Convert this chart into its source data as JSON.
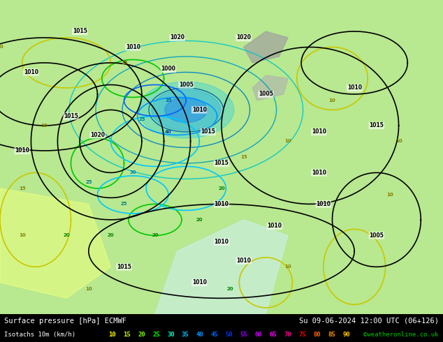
{
  "title_left": "Surface pressure [hPa] ECMWF",
  "title_right": "Su 09-06-2024 12:00 UTC (06+126)",
  "legend_left": "Isotachs 10m (km/h)",
  "legend_values": [
    "10",
    "15",
    "20",
    "25",
    "30",
    "35",
    "40",
    "45",
    "50",
    "55",
    "60",
    "65",
    "70",
    "75",
    "80",
    "85",
    "90"
  ],
  "legend_colors": [
    "#ffff00",
    "#c8ff00",
    "#00ff00",
    "#00ffc8",
    "#00c8ff",
    "#0096ff",
    "#0064ff",
    "#0032ff",
    "#9600ff",
    "#c800ff",
    "#ff00ff",
    "#ff0096",
    "#ff0000",
    "#ff6400",
    "#ff9600",
    "#ffc800",
    "#ffff00"
  ],
  "copyright": "©weatheronline.co.uk",
  "bg_color": "#aade87",
  "map_bg": "#c8f0a0",
  "bottom_bg": "#000000",
  "bottom_text_color": "#ffffff",
  "figsize": [
    6.34,
    4.9
  ],
  "dpi": 100,
  "bottom_bar_height": 0.082
}
